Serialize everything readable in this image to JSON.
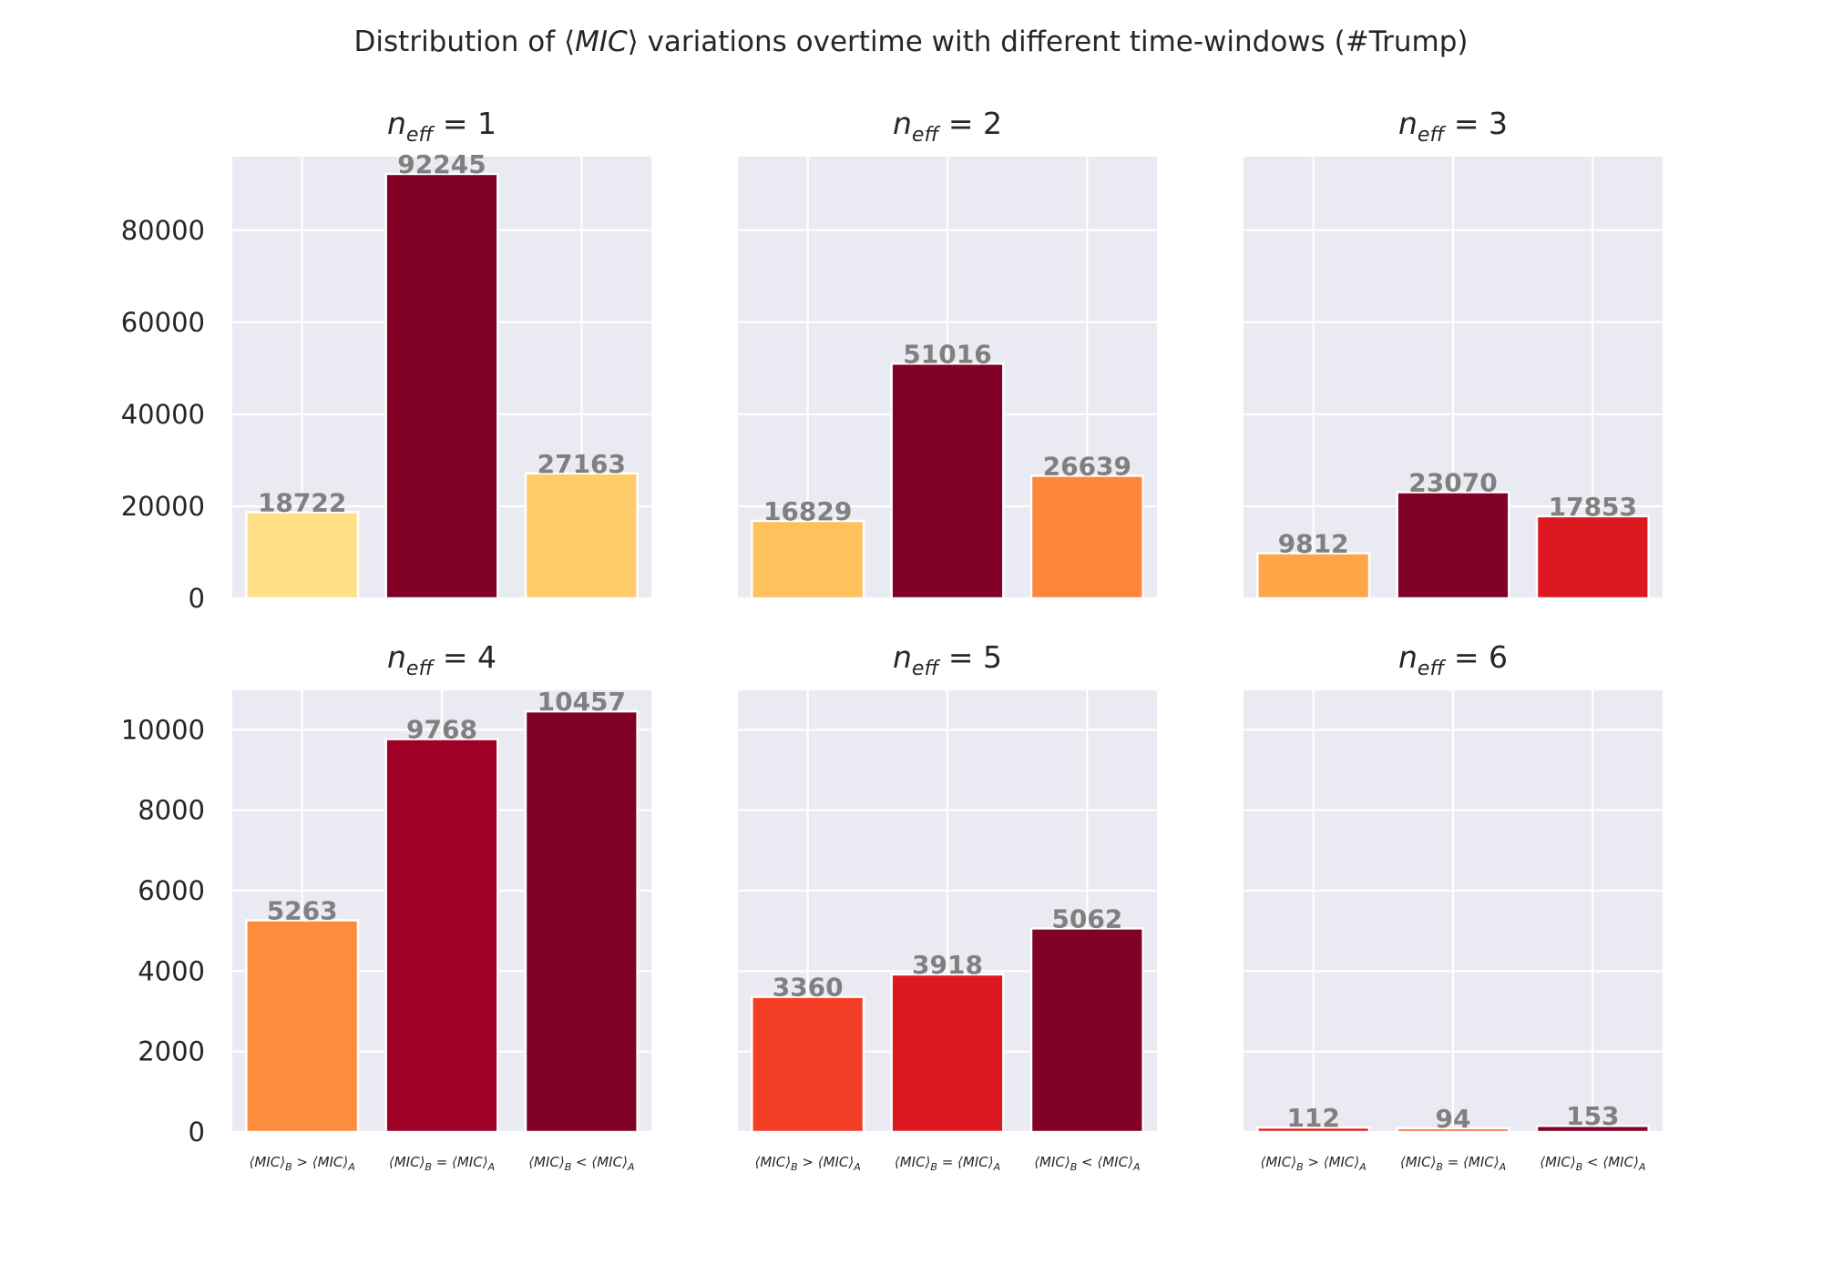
{
  "chart_data": {
    "type": "bar",
    "title": "Distribution of ⟨MIC⟩ variations overtime with different time-windows (#Trump)",
    "title_parts": {
      "prefix": "Distribution of ⟨",
      "italic": "MIC",
      "suffix": "⟩ variations overtime with different time-windows (#Trump)"
    },
    "categories": [
      {
        "base": "⟨MIC⟩",
        "sub1": "B",
        "op": "> ⟨MIC⟩",
        "sub2": "A"
      },
      {
        "base": "⟨MIC⟩",
        "sub1": "B",
        "op": "= ⟨MIC⟩",
        "sub2": "A"
      },
      {
        "base": "⟨MIC⟩",
        "sub1": "B",
        "op": "< ⟨MIC⟩",
        "sub2": "A"
      }
    ],
    "grid": true,
    "sharey": "row",
    "rows": [
      {
        "ylim": [
          0,
          96000
        ],
        "yticks": [
          0,
          20000,
          40000,
          60000,
          80000
        ]
      },
      {
        "ylim": [
          0,
          10980
        ],
        "yticks": [
          0,
          2000,
          4000,
          6000,
          8000,
          10000
        ]
      }
    ],
    "panels": [
      {
        "title_var": "n",
        "title_sub": "eff",
        "title_rest": " = 1",
        "values": [
          18722,
          92245,
          27163
        ],
        "colors": [
          "#ffdf88",
          "#800026",
          "#fecc68"
        ]
      },
      {
        "title_var": "n",
        "title_sub": "eff",
        "title_rest": " = 2",
        "values": [
          16829,
          51016,
          26639
        ],
        "colors": [
          "#fec15e",
          "#800026",
          "#fd863b"
        ]
      },
      {
        "title_var": "n",
        "title_sub": "eff",
        "title_rest": " = 3",
        "values": [
          9812,
          23070,
          17853
        ],
        "colors": [
          "#fea548",
          "#800026",
          "#dd1820"
        ]
      },
      {
        "title_var": "n",
        "title_sub": "eff",
        "title_rest": " = 4",
        "values": [
          5263,
          9768,
          10457
        ],
        "colors": [
          "#fd8d3c",
          "#9f0026",
          "#800026"
        ]
      },
      {
        "title_var": "n",
        "title_sub": "eff",
        "title_rest": " = 5",
        "values": [
          3360,
          3918,
          5062
        ],
        "colors": [
          "#f43d25",
          "#dd1820",
          "#800026"
        ]
      },
      {
        "title_var": "n",
        "title_sub": "eff",
        "title_rest": " = 6",
        "values": [
          112,
          94,
          153
        ],
        "colors": [
          "#e2211e",
          "#fa6a3a",
          "#800026"
        ]
      }
    ]
  }
}
